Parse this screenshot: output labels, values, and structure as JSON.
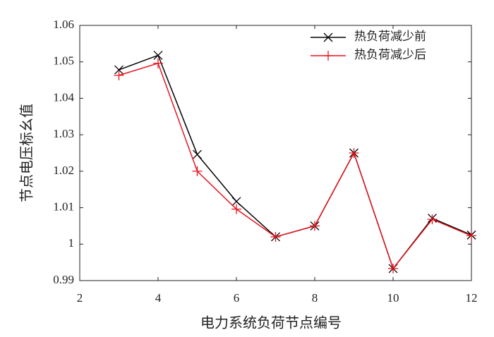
{
  "chart_data": {
    "type": "line",
    "xlabel": "电力系统负荷节点编号",
    "ylabel": "节点电压标幺值",
    "x": [
      3,
      4,
      5,
      6,
      7,
      8,
      9,
      10,
      11,
      12
    ],
    "series": [
      {
        "name": "热负荷减少前",
        "color": "#000000",
        "marker": "x",
        "values": [
          1.0478,
          1.0518,
          1.0246,
          1.0117,
          1.002,
          1.005,
          1.025,
          0.9933,
          1.0071,
          1.0025
        ]
      },
      {
        "name": "热负荷减少后",
        "color": "#e8141e",
        "marker": "+",
        "values": [
          1.0463,
          1.0496,
          1.02,
          1.0096,
          1.002,
          1.005,
          1.025,
          0.9933,
          1.0068,
          1.0023
        ]
      }
    ],
    "xlim": [
      2,
      12
    ],
    "xticks": [
      2,
      4,
      6,
      8,
      10,
      12
    ],
    "ylim": [
      0.99,
      1.06
    ],
    "yticks": [
      0.99,
      1,
      1.01,
      1.02,
      1.03,
      1.04,
      1.05,
      1.06
    ],
    "grid": false,
    "legend": "upper right"
  }
}
